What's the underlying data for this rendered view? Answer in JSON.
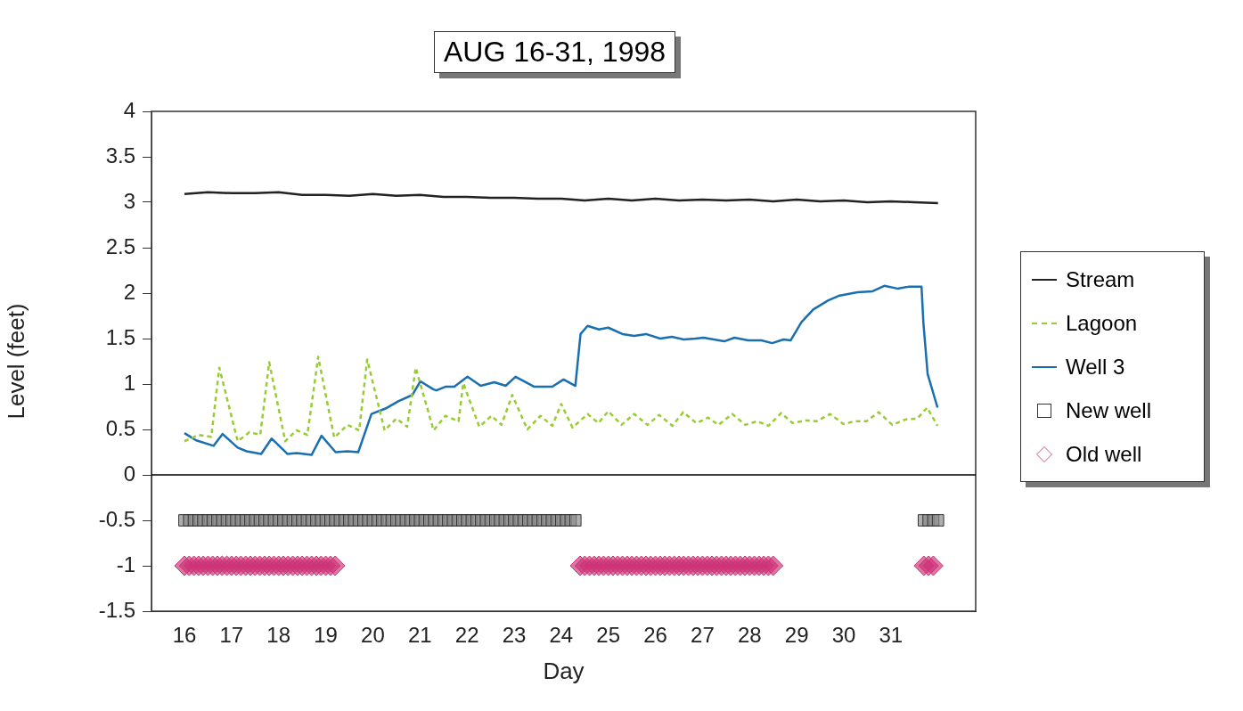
{
  "chart_data": {
    "type": "line",
    "title": "AUG 16-31, 1998",
    "xlabel": "Day",
    "ylabel": "Level (feet)",
    "xlim": [
      15.3,
      32.8
    ],
    "xticks": [
      16,
      17,
      18,
      19,
      20,
      21,
      22,
      23,
      24,
      25,
      26,
      27,
      28,
      29,
      30,
      31
    ],
    "ylim": [
      -1.5,
      4
    ],
    "yticks": [
      -1.5,
      -1,
      -0.5,
      0,
      0.5,
      1,
      1.5,
      2,
      2.5,
      3,
      3.5,
      4
    ],
    "legend": "right",
    "ref_lines": [
      {
        "axis": "y",
        "value": 0,
        "color": "#000000"
      }
    ],
    "series": [
      {
        "name": "Stream",
        "color": "#222222",
        "x": [
          16,
          16.5,
          17,
          17.5,
          18,
          18.5,
          19,
          19.5,
          20,
          20.5,
          21,
          21.5,
          22,
          22.5,
          23,
          23.5,
          24,
          24.5,
          25,
          25.5,
          26,
          26.5,
          27,
          27.5,
          28,
          28.5,
          29,
          29.5,
          30,
          30.5,
          31,
          31.5,
          32
        ],
        "values": [
          3.09,
          3.11,
          3.1,
          3.1,
          3.11,
          3.08,
          3.08,
          3.07,
          3.09,
          3.07,
          3.08,
          3.06,
          3.06,
          3.05,
          3.05,
          3.04,
          3.04,
          3.02,
          3.04,
          3.02,
          3.04,
          3.02,
          3.03,
          3.02,
          3.03,
          3.01,
          3.03,
          3.01,
          3.02,
          3,
          3.01,
          3,
          2.99
        ]
      },
      {
        "name": "Lagoon",
        "line_style": "dashed",
        "color": "#99cc33",
        "x": [
          16,
          16.3,
          16.57,
          16.74,
          17.13,
          17.38,
          17.61,
          17.8,
          18.14,
          18.38,
          18.61,
          18.84,
          19.18,
          19.46,
          19.71,
          19.88,
          20.25,
          20.5,
          20.73,
          20.91,
          21.29,
          21.54,
          21.82,
          21.92,
          22.26,
          22.52,
          22.73,
          22.96,
          23.28,
          23.56,
          23.81,
          24,
          24.24,
          24.56,
          24.79,
          25,
          25.28,
          25.55,
          25.83,
          26.08,
          26.36,
          26.59,
          26.87,
          27.12,
          27.34,
          27.63,
          27.91,
          28.16,
          28.4,
          28.67,
          28.91,
          29.19,
          29.42,
          29.71,
          29.99,
          30.23,
          30.48,
          30.74,
          31.03,
          31.31,
          31.56,
          31.77,
          31.99
        ],
        "values": [
          0.37,
          0.44,
          0.42,
          1.18,
          0.37,
          0.47,
          0.44,
          1.24,
          0.37,
          0.49,
          0.44,
          1.3,
          0.41,
          0.55,
          0.49,
          1.27,
          0.49,
          0.62,
          0.53,
          1.18,
          0.49,
          0.65,
          0.59,
          1.01,
          0.53,
          0.65,
          0.55,
          0.88,
          0.5,
          0.65,
          0.54,
          0.78,
          0.52,
          0.67,
          0.57,
          0.7,
          0.55,
          0.67,
          0.55,
          0.66,
          0.54,
          0.69,
          0.57,
          0.63,
          0.55,
          0.67,
          0.55,
          0.59,
          0.54,
          0.68,
          0.57,
          0.6,
          0.59,
          0.67,
          0.56,
          0.59,
          0.59,
          0.69,
          0.55,
          0.61,
          0.62,
          0.74,
          0.54
        ]
      },
      {
        "name": "Well 3",
        "color": "#1a6fb0",
        "x": [
          16,
          16.25,
          16.62,
          16.81,
          17.13,
          17.32,
          17.63,
          17.85,
          18.19,
          18.38,
          18.7,
          18.91,
          19.21,
          19.46,
          19.69,
          19.97,
          20.27,
          20.54,
          20.84,
          21.01,
          21.29,
          21.35,
          21.54,
          21.73,
          22.01,
          22.29,
          22.58,
          22.82,
          23.03,
          23.43,
          23.81,
          24.05,
          24.3,
          24.41,
          24.56,
          24.8,
          25,
          25.3,
          25.55,
          25.8,
          26.1,
          26.35,
          26.6,
          26.85,
          27.02,
          27.46,
          27.68,
          27.97,
          28.25,
          28.48,
          28.72,
          28.87,
          29.1,
          29.35,
          29.67,
          29.89,
          29.99,
          30.29,
          30.61,
          30.86,
          31.14,
          31.37,
          31.65,
          31.69,
          31.78,
          31.99
        ],
        "values": [
          0.46,
          0.38,
          0.32,
          0.45,
          0.3,
          0.26,
          0.23,
          0.4,
          0.23,
          0.24,
          0.22,
          0.43,
          0.25,
          0.26,
          0.25,
          0.67,
          0.73,
          0.81,
          0.88,
          1.03,
          0.94,
          0.93,
          0.97,
          0.97,
          1.08,
          0.98,
          1.02,
          0.98,
          1.08,
          0.97,
          0.97,
          1.05,
          0.98,
          1.55,
          1.64,
          1.6,
          1.62,
          1.55,
          1.53,
          1.55,
          1.5,
          1.52,
          1.49,
          1.5,
          1.51,
          1.47,
          1.51,
          1.48,
          1.48,
          1.45,
          1.49,
          1.48,
          1.68,
          1.82,
          1.92,
          1.97,
          1.98,
          2.01,
          2.02,
          2.08,
          2.05,
          2.07,
          2.07,
          1.67,
          1.11,
          0.74
        ]
      },
      {
        "name": "New well",
        "type": "scatter",
        "marker": "square",
        "color": "#888888",
        "x": [
          16,
          16.1,
          16.2,
          16.3,
          16.4,
          16.5,
          16.6,
          16.7,
          16.8,
          16.9,
          17,
          17.1,
          17.2,
          17.3,
          17.4,
          17.5,
          17.6,
          17.7,
          17.8,
          17.9,
          18,
          18.1,
          18.2,
          18.3,
          18.4,
          18.5,
          18.6,
          18.7,
          18.8,
          18.9,
          19,
          19.1,
          19.2,
          19.3,
          19.4,
          19.5,
          19.6,
          19.7,
          19.8,
          19.9,
          20,
          20.1,
          20.2,
          20.3,
          20.4,
          20.5,
          20.6,
          20.7,
          20.8,
          20.9,
          21,
          21.1,
          21.2,
          21.3,
          21.4,
          21.5,
          21.6,
          21.7,
          21.8,
          21.9,
          22,
          22.1,
          22.2,
          22.3,
          22.4,
          22.5,
          22.6,
          22.7,
          22.8,
          22.9,
          23,
          23.1,
          23.2,
          23.3,
          23.4,
          23.5,
          23.6,
          23.7,
          23.8,
          23.9,
          24,
          24.1,
          24.2,
          24.3,
          31.7,
          31.8,
          31.9,
          32
        ],
        "values": [
          -0.5,
          -0.5,
          -0.5,
          -0.5,
          -0.5,
          -0.5,
          -0.5,
          -0.5,
          -0.5,
          -0.5,
          -0.5,
          -0.5,
          -0.5,
          -0.5,
          -0.5,
          -0.5,
          -0.5,
          -0.5,
          -0.5,
          -0.5,
          -0.5,
          -0.5,
          -0.5,
          -0.5,
          -0.5,
          -0.5,
          -0.5,
          -0.5,
          -0.5,
          -0.5,
          -0.5,
          -0.5,
          -0.5,
          -0.5,
          -0.5,
          -0.5,
          -0.5,
          -0.5,
          -0.5,
          -0.5,
          -0.5,
          -0.5,
          -0.5,
          -0.5,
          -0.5,
          -0.5,
          -0.5,
          -0.5,
          -0.5,
          -0.5,
          -0.5,
          -0.5,
          -0.5,
          -0.5,
          -0.5,
          -0.5,
          -0.5,
          -0.5,
          -0.5,
          -0.5,
          -0.5,
          -0.5,
          -0.5,
          -0.5,
          -0.5,
          -0.5,
          -0.5,
          -0.5,
          -0.5,
          -0.5,
          -0.5,
          -0.5,
          -0.5,
          -0.5,
          -0.5,
          -0.5,
          -0.5,
          -0.5,
          -0.5,
          -0.5,
          -0.5,
          -0.5,
          -0.5,
          -0.5,
          -0.5,
          -0.5,
          -0.5,
          -0.5
        ]
      },
      {
        "name": "Old well",
        "type": "scatter",
        "marker": "diamond",
        "color": "#cc3377",
        "x": [
          16,
          16.1,
          16.2,
          16.3,
          16.4,
          16.5,
          16.6,
          16.7,
          16.8,
          16.9,
          17,
          17.1,
          17.2,
          17.3,
          17.4,
          17.5,
          17.6,
          17.7,
          17.8,
          17.9,
          18,
          18.1,
          18.2,
          18.3,
          18.4,
          18.5,
          18.6,
          18.7,
          18.8,
          18.9,
          19,
          19.1,
          19.2,
          24.4,
          24.5,
          24.6,
          24.7,
          24.8,
          24.9,
          25,
          25.1,
          25.2,
          25.3,
          25.4,
          25.5,
          25.6,
          25.7,
          25.8,
          25.9,
          26,
          26.1,
          26.2,
          26.3,
          26.4,
          26.5,
          26.6,
          26.7,
          26.8,
          26.9,
          27,
          27.1,
          27.2,
          27.3,
          27.4,
          27.5,
          27.6,
          27.7,
          27.8,
          27.9,
          28,
          28.1,
          28.2,
          28.3,
          28.4,
          28.5,
          31.7,
          31.8,
          31.9
        ],
        "values": [
          -1,
          -1,
          -1,
          -1,
          -1,
          -1,
          -1,
          -1,
          -1,
          -1,
          -1,
          -1,
          -1,
          -1,
          -1,
          -1,
          -1,
          -1,
          -1,
          -1,
          -1,
          -1,
          -1,
          -1,
          -1,
          -1,
          -1,
          -1,
          -1,
          -1,
          -1,
          -1,
          -1,
          -1,
          -1,
          -1,
          -1,
          -1,
          -1,
          -1,
          -1,
          -1,
          -1,
          -1,
          -1,
          -1,
          -1,
          -1,
          -1,
          -1,
          -1,
          -1,
          -1,
          -1,
          -1,
          -1,
          -1,
          -1,
          -1,
          -1,
          -1,
          -1,
          -1,
          -1,
          -1,
          -1,
          -1,
          -1,
          -1,
          -1,
          -1,
          -1,
          -1,
          -1,
          -1,
          -1,
          -1,
          -1
        ]
      }
    ]
  }
}
